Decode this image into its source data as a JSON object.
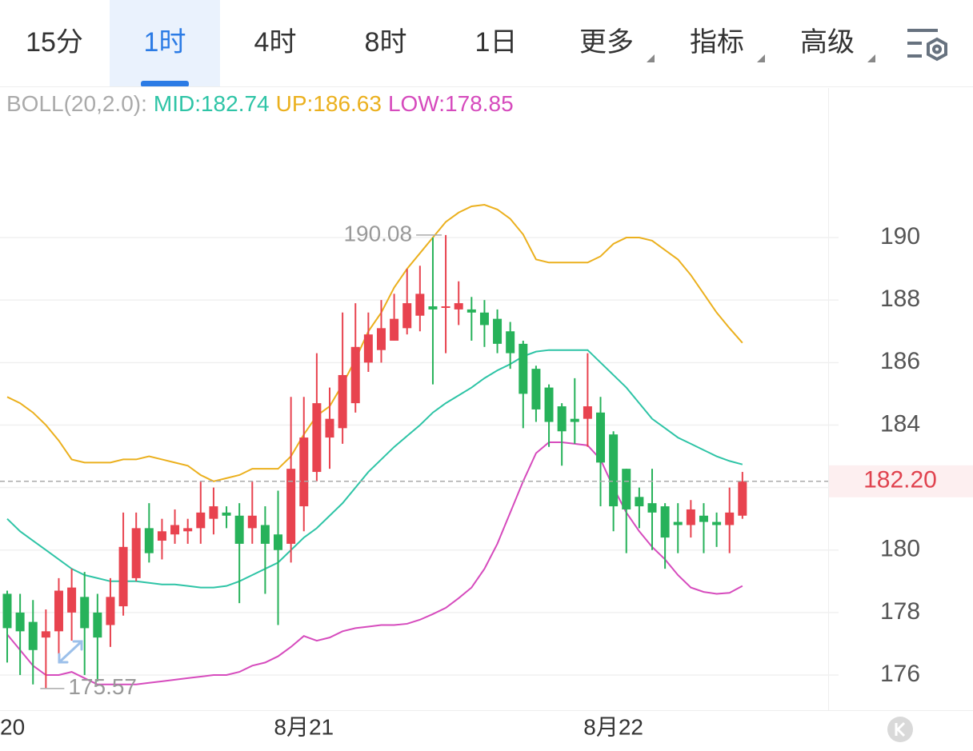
{
  "tabs": [
    {
      "label": "15分"
    },
    {
      "label": "1时",
      "selected": true
    },
    {
      "label": "4时"
    },
    {
      "label": "8时"
    },
    {
      "label": "1日"
    },
    {
      "label": "更多",
      "dropdown": true
    },
    {
      "label": "指标",
      "dropdown": true
    },
    {
      "label": "高级",
      "dropdown": true
    }
  ],
  "chart_data": {
    "type": "candlestick",
    "indicator": "BOLL(20,2.0):",
    "categories": [
      "20",
      null,
      null,
      null,
      null,
      null,
      null,
      null,
      null,
      null,
      null,
      null,
      null,
      null,
      null,
      null,
      null,
      null,
      null,
      null,
      null,
      null,
      null,
      "8月21",
      null,
      null,
      null,
      null,
      null,
      null,
      null,
      null,
      null,
      null,
      null,
      null,
      null,
      null,
      null,
      null,
      null,
      null,
      null,
      null,
      null,
      null,
      null,
      "8月22",
      null,
      null,
      null,
      null,
      null,
      null,
      null,
      null,
      null,
      null
    ],
    "open": [
      178.6,
      178.0,
      177.7,
      177.2,
      177.4,
      178.0,
      178.5,
      178.0,
      177.6,
      178.2,
      179.1,
      180.7,
      180.3,
      180.5,
      180.6,
      180.7,
      181.0,
      181.2,
      181.1,
      180.7,
      180.8,
      180.5,
      180.2,
      181.4,
      182.5,
      183.6,
      183.9,
      184.7,
      186.0,
      186.4,
      186.7,
      187.1,
      187.5,
      187.8,
      187.75,
      187.7,
      187.7,
      187.6,
      187.4,
      187.0,
      186.6,
      185.8,
      185.2,
      184.6,
      184.2,
      184.2,
      184.4,
      183.7,
      182.6,
      181.7,
      181.5,
      181.4,
      180.9,
      180.8,
      181.1,
      180.9,
      180.8,
      181.1
    ],
    "high": [
      178.7,
      178.6,
      178.4,
      178.1,
      179.1,
      179.4,
      179.3,
      178.6,
      179.1,
      181.2,
      181.2,
      181.5,
      181.0,
      181.3,
      181.0,
      182.2,
      182.0,
      181.4,
      181.5,
      182.2,
      181.4,
      181.9,
      184.9,
      184.9,
      186.3,
      185.2,
      187.6,
      187.9,
      187.6,
      188.0,
      188.2,
      189.0,
      189.1,
      190.0,
      190.08,
      188.6,
      188.1,
      188.0,
      187.7,
      187.3,
      186.7,
      185.9,
      185.3,
      184.7,
      185.5,
      186.3,
      184.9,
      183.8,
      182.6,
      182.0,
      182.6,
      181.5,
      181.5,
      181.6,
      181.5,
      181.2,
      182.0,
      182.5
    ],
    "low": [
      176.4,
      176.0,
      175.7,
      175.57,
      176.4,
      177.1,
      176.0,
      175.8,
      176.9,
      177.9,
      179.0,
      179.6,
      179.7,
      180.2,
      180.2,
      180.2,
      180.5,
      180.7,
      178.3,
      180.2,
      178.6,
      177.6,
      179.6,
      180.6,
      182.2,
      182.6,
      183.4,
      184.4,
      185.7,
      186.0,
      186.7,
      186.9,
      187.0,
      185.3,
      186.3,
      187.2,
      186.7,
      186.5,
      186.3,
      185.8,
      183.9,
      184.1,
      183.3,
      182.7,
      183.4,
      183.3,
      181.4,
      180.6,
      179.9,
      180.7,
      180.0,
      179.4,
      179.9,
      180.4,
      179.9,
      180.1,
      179.9,
      181.0
    ],
    "close": [
      177.5,
      177.4,
      176.8,
      177.4,
      178.7,
      178.8,
      177.5,
      177.2,
      178.5,
      180.1,
      180.7,
      179.9,
      180.6,
      180.8,
      180.7,
      181.2,
      181.4,
      181.1,
      180.2,
      181.1,
      180.2,
      180.0,
      182.6,
      183.6,
      184.7,
      184.2,
      185.6,
      186.5,
      186.9,
      187.1,
      187.4,
      187.9,
      188.2,
      187.7,
      187.8,
      187.9,
      187.6,
      187.2,
      186.6,
      186.3,
      185.0,
      184.5,
      184.1,
      183.8,
      184.1,
      184.6,
      182.8,
      181.4,
      181.3,
      181.4,
      181.2,
      180.4,
      180.8,
      181.3,
      180.9,
      180.8,
      181.2,
      182.2
    ],
    "up_color": "#e8434f",
    "down_color": "#27b25a",
    "series": [
      {
        "name": "MID:182.74",
        "color": "#2ec4a6",
        "values": [
          181.0,
          180.6,
          180.3,
          180.0,
          179.7,
          179.4,
          179.2,
          179.1,
          179.0,
          179.0,
          179.0,
          178.95,
          178.9,
          178.9,
          178.85,
          178.8,
          178.8,
          178.85,
          179.0,
          179.2,
          179.4,
          179.6,
          180.0,
          180.4,
          180.7,
          181.1,
          181.5,
          182.0,
          182.5,
          182.9,
          183.3,
          183.65,
          184.0,
          184.4,
          184.7,
          184.95,
          185.2,
          185.5,
          185.75,
          185.95,
          186.2,
          186.35,
          186.4,
          186.4,
          186.4,
          186.4,
          186.0,
          185.6,
          185.2,
          184.7,
          184.2,
          183.9,
          183.6,
          183.4,
          183.2,
          183.0,
          182.85,
          182.74
        ]
      },
      {
        "name": "UP:186.63",
        "color": "#ebb01e",
        "values": [
          184.9,
          184.7,
          184.4,
          184.0,
          183.5,
          182.9,
          182.8,
          182.8,
          182.8,
          182.9,
          182.9,
          183.0,
          182.9,
          182.8,
          182.7,
          182.4,
          182.2,
          182.3,
          182.4,
          182.6,
          182.6,
          182.6,
          183.0,
          183.7,
          184.3,
          184.6,
          185.3,
          186.1,
          187.0,
          187.6,
          188.4,
          189.0,
          189.5,
          190.0,
          190.5,
          190.8,
          191.0,
          191.05,
          190.9,
          190.6,
          190.1,
          189.3,
          189.2,
          189.2,
          189.2,
          189.2,
          189.4,
          189.8,
          190.0,
          190.0,
          189.9,
          189.6,
          189.3,
          188.8,
          188.2,
          187.6,
          187.1,
          186.63
        ]
      },
      {
        "name": "LOW:178.85",
        "color": "#d64bbd",
        "values": [
          177.3,
          176.8,
          176.3,
          176.0,
          176.0,
          176.1,
          175.9,
          175.7,
          175.7,
          175.7,
          175.7,
          175.75,
          175.8,
          175.85,
          175.9,
          175.95,
          176.0,
          176.0,
          176.1,
          176.3,
          176.4,
          176.6,
          176.9,
          177.25,
          177.1,
          177.2,
          177.4,
          177.5,
          177.55,
          177.6,
          177.6,
          177.64,
          177.77,
          177.95,
          178.15,
          178.46,
          178.8,
          179.4,
          180.2,
          181.2,
          182.2,
          183.1,
          183.45,
          183.45,
          183.4,
          183.35,
          182.9,
          182.0,
          181.2,
          180.6,
          180.1,
          179.7,
          179.2,
          178.8,
          178.66,
          178.6,
          178.63,
          178.85
        ]
      }
    ],
    "ylim": [
      174.9,
      194.8
    ],
    "yticks": [
      176,
      178,
      180,
      182,
      184,
      186,
      188,
      190
    ],
    "grid": true,
    "annotations": [
      {
        "value": 190.08
      },
      {
        "value": 175.57
      }
    ],
    "last_price": {
      "value": 182.2,
      "label": "182.20"
    }
  }
}
